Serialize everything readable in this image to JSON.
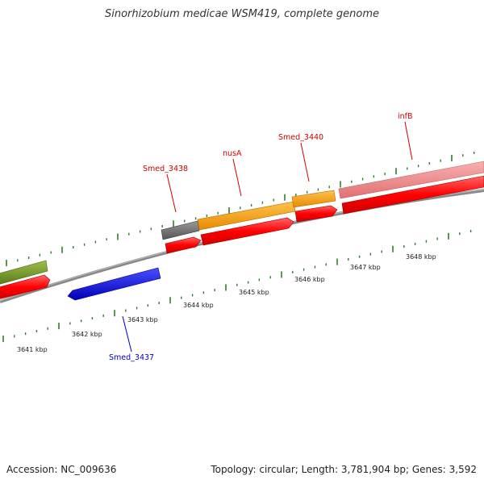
{
  "title": "Sinorhizobium medicae WSM419, complete genome",
  "footer": {
    "accession": "Accession: NC_009636",
    "info": "Topology: circular; Length: 3,781,904 bp; Genes: 3,592"
  },
  "colors": {
    "backbone": "#8a8a8a",
    "cds": "#ff0000",
    "rna": "#f08080",
    "tick": "#2e7d2e",
    "label_forward": "#cc0000",
    "label_reverse": "#0000cc",
    "gene_olive": "#6b8e23",
    "gene_grey": "#666666",
    "gene_orange": "#ff9900",
    "gene_blue": "#0000ee"
  },
  "tick_labels": [
    "3641 kbp",
    "3642 kbp",
    "3643 kbp",
    "3644 kbp",
    "3645 kbp",
    "3646 kbp",
    "3647 kbp",
    "3648 kbp"
  ],
  "features": {
    "forward_genes": [
      {
        "name": "olive-gene",
        "color": "#6b8e23",
        "label": ""
      },
      {
        "name": "smed-3438-gene",
        "color": "#666666",
        "label": "Smed_3438"
      },
      {
        "name": "nusa-gene",
        "color": "#ff9900",
        "label": "nusA"
      },
      {
        "name": "smed-3440-gene",
        "color": "#ff9900",
        "label": "Smed_3440"
      },
      {
        "name": "infb-gene",
        "color": "#f08080",
        "label": "infB"
      }
    ],
    "reverse_genes": [
      {
        "name": "smed-3437-gene",
        "color": "#0000ee",
        "label": "Smed_3437"
      }
    ]
  }
}
